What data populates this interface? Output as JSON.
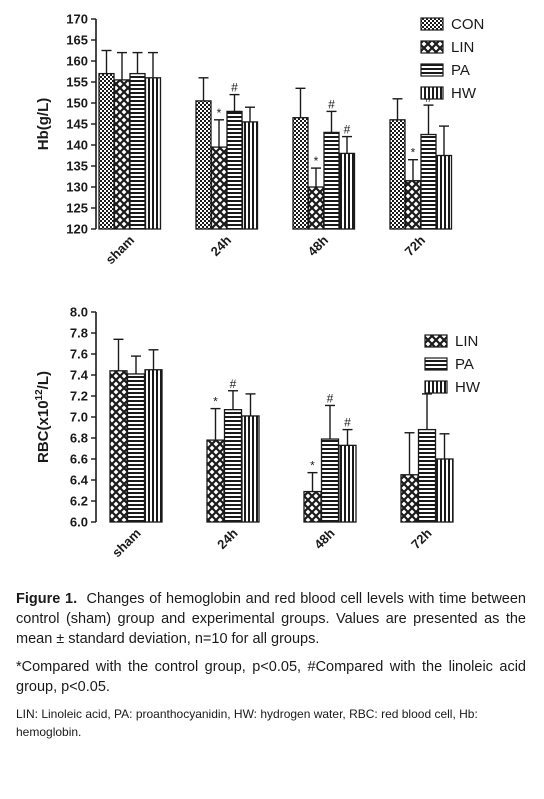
{
  "chart_data": [
    {
      "type": "bar",
      "ylabel": "Hb(g/L)",
      "ylim": [
        120,
        170
      ],
      "yticks": [
        120,
        125,
        130,
        135,
        140,
        145,
        150,
        155,
        160,
        165,
        170
      ],
      "categories": [
        "sham",
        "24h",
        "48h",
        "72h"
      ],
      "legend_position": "top-right",
      "series": [
        {
          "name": "CON",
          "pattern": "checker",
          "values": [
            157,
            150.5,
            146.5,
            146
          ],
          "errors": [
            5.5,
            5.5,
            7,
            5
          ],
          "marks": [
            "",
            "",
            "",
            ""
          ]
        },
        {
          "name": "LIN",
          "pattern": "crosshatch",
          "values": [
            155.5,
            139.5,
            130,
            131.5
          ],
          "errors": [
            6.5,
            6.5,
            4.5,
            5
          ],
          "marks": [
            "",
            "*",
            "*",
            "*"
          ]
        },
        {
          "name": "PA",
          "pattern": "horizontal",
          "values": [
            157,
            148,
            143,
            142.5
          ],
          "errors": [
            5,
            4,
            5,
            7
          ],
          "marks": [
            "",
            "#",
            "#",
            "#"
          ]
        },
        {
          "name": "HW",
          "pattern": "vertical",
          "values": [
            156,
            145.5,
            138,
            137.5
          ],
          "errors": [
            6,
            3.5,
            4,
            7
          ],
          "marks": [
            "",
            "",
            "#",
            ""
          ]
        }
      ]
    },
    {
      "type": "bar",
      "ylabel": "RBC(x10",
      "ylabel_sup": "12",
      "ylabel_tail": "/L)",
      "ylim": [
        6.0,
        8.0
      ],
      "yticks": [
        "6.0",
        "6.2",
        "6.4",
        "6.6",
        "6.8",
        "7.0",
        "7.2",
        "7.4",
        "7.6",
        "7.8",
        "8.0"
      ],
      "categories": [
        "sham",
        "24h",
        "48h",
        "72h"
      ],
      "legend_position": "top-right",
      "series": [
        {
          "name": "LIN",
          "pattern": "crosshatch",
          "values": [
            7.44,
            6.78,
            6.29,
            6.45
          ],
          "errors": [
            0.3,
            0.3,
            0.18,
            0.4
          ],
          "marks": [
            "",
            "*",
            "*",
            ""
          ]
        },
        {
          "name": "PA",
          "pattern": "horizontal",
          "values": [
            7.41,
            7.07,
            6.79,
            6.88
          ],
          "errors": [
            0.17,
            0.18,
            0.32,
            0.34
          ],
          "marks": [
            "",
            "#",
            "#",
            ""
          ]
        },
        {
          "name": "HW",
          "pattern": "vertical",
          "values": [
            7.45,
            7.01,
            6.73,
            6.6
          ],
          "errors": [
            0.19,
            0.21,
            0.15,
            0.24
          ],
          "marks": [
            "",
            "",
            "#",
            ""
          ]
        }
      ]
    }
  ],
  "caption": {
    "figure_label": "Figure 1.",
    "figure_text": "Changes of hemoglobin and red blood cell levels with time between control (sham) group and experimental groups. Values are presented as the mean ± standard deviation, n=10 for all groups.",
    "note": "*Compared with the control group, p<0.05, #Compared with the linoleic acid group, p<0.05.",
    "abbreviations": "LIN: Linoleic acid, PA: proanthocyanidin, HW: hydrogen water, RBC: red blood cell, Hb: hemoglobin."
  }
}
